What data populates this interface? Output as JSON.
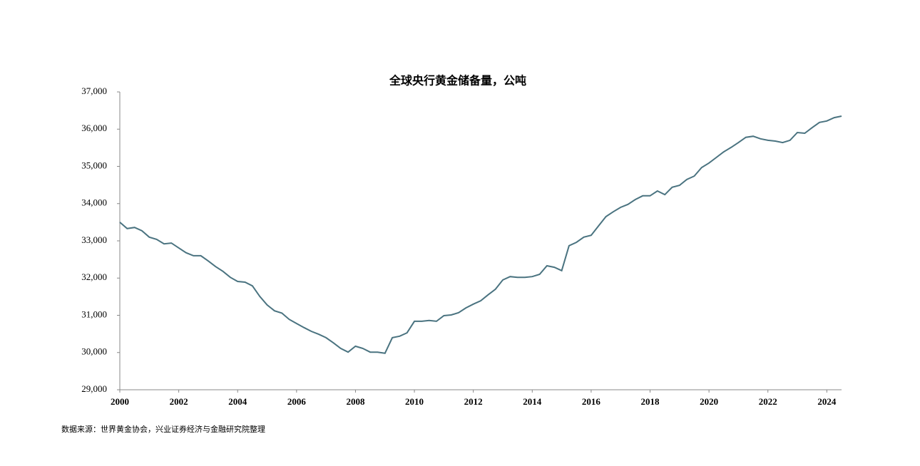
{
  "chart_data": {
    "type": "line",
    "title": "全球央行黄金储备量，公吨",
    "source": "数据来源：世界黄金协会，兴业证券经济与金融研究院整理",
    "x": [
      2000,
      2000.25,
      2000.5,
      2000.75,
      2001,
      2001.25,
      2001.5,
      2001.75,
      2002,
      2002.25,
      2002.5,
      2002.75,
      2003,
      2003.25,
      2003.5,
      2003.75,
      2004,
      2004.25,
      2004.5,
      2004.75,
      2005,
      2005.25,
      2005.5,
      2005.75,
      2006,
      2006.25,
      2006.5,
      2006.75,
      2007,
      2007.25,
      2007.5,
      2007.75,
      2008,
      2008.25,
      2008.5,
      2008.75,
      2009,
      2009.25,
      2009.5,
      2009.75,
      2010,
      2010.25,
      2010.5,
      2010.75,
      2011,
      2011.25,
      2011.5,
      2011.75,
      2012,
      2012.25,
      2012.5,
      2012.75,
      2013,
      2013.25,
      2013.5,
      2013.75,
      2014,
      2014.25,
      2014.5,
      2014.75,
      2015,
      2015.25,
      2015.5,
      2015.75,
      2016,
      2016.25,
      2016.5,
      2016.75,
      2017,
      2017.25,
      2017.5,
      2017.75,
      2018,
      2018.25,
      2018.5,
      2018.75,
      2019,
      2019.25,
      2019.5,
      2019.75,
      2020,
      2020.25,
      2020.5,
      2020.75,
      2021,
      2021.25,
      2021.5,
      2021.75,
      2022,
      2022.25,
      2022.5,
      2022.75,
      2023,
      2023.25,
      2023.5,
      2023.75,
      2024,
      2024.25,
      2024.5
    ],
    "series": [
      {
        "color": "#4a7380",
        "values": [
          33500,
          33330,
          33360,
          33270,
          33100,
          33040,
          32920,
          32940,
          32810,
          32680,
          32600,
          32600,
          32460,
          32310,
          32180,
          32020,
          31910,
          31890,
          31790,
          31510,
          31280,
          31120,
          31060,
          30890,
          30780,
          30670,
          30570,
          30490,
          30400,
          30260,
          30110,
          30010,
          30170,
          30110,
          30010,
          30010,
          29980,
          30400,
          30440,
          30530,
          30840,
          30840,
          30860,
          30840,
          30990,
          31010,
          31070,
          31200,
          31300,
          31390,
          31550,
          31700,
          31950,
          32040,
          32020,
          32020,
          32040,
          32100,
          32330,
          32290,
          32200,
          32870,
          32960,
          33100,
          33150,
          33400,
          33650,
          33780,
          33900,
          33980,
          34110,
          34210,
          34210,
          34340,
          34240,
          34440,
          34490,
          34650,
          34740,
          34970,
          35090,
          35240,
          35390,
          35510,
          35640,
          35780,
          35810,
          35740,
          35700,
          35680,
          35640,
          35700,
          35910,
          35890,
          36040,
          36180,
          36220,
          36310,
          36350
        ]
      }
    ],
    "xlim": [
      2000,
      2024.5
    ],
    "xticks": [
      2000,
      2002,
      2004,
      2006,
      2008,
      2010,
      2012,
      2014,
      2016,
      2018,
      2020,
      2022,
      2024
    ],
    "ylim": [
      29000,
      37000
    ],
    "yticks": [
      {
        "value": 29000,
        "label": "29,000"
      },
      {
        "value": 30000,
        "label": "30,000"
      },
      {
        "value": 31000,
        "label": "31,000"
      },
      {
        "value": 32000,
        "label": "32,000"
      },
      {
        "value": 33000,
        "label": "33,000"
      },
      {
        "value": 34000,
        "label": "34,000"
      },
      {
        "value": 35000,
        "label": "35,000"
      },
      {
        "value": 36000,
        "label": "36,000"
      },
      {
        "value": 37000,
        "label": "37,000"
      }
    ]
  }
}
